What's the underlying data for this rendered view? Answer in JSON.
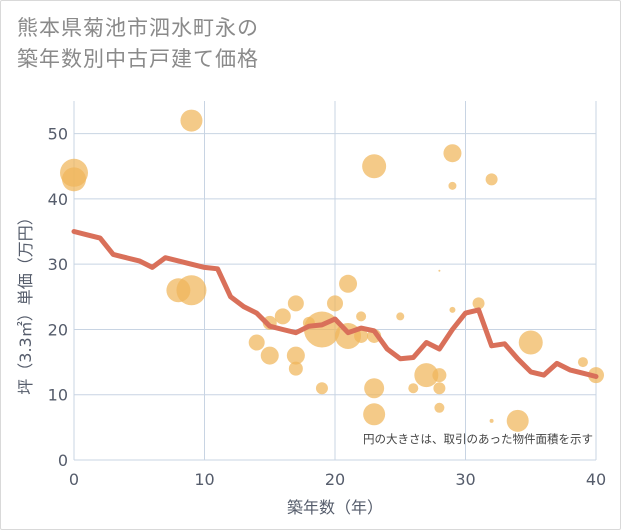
{
  "title_lines": [
    "熊本県菊池市泗水町永の",
    "築年数別中古戸建て価格"
  ],
  "colors": {
    "bubble": "#f0b55a",
    "line": "#d9705a",
    "grid": "#c8d4e3",
    "plot_bg": "#ffffff"
  },
  "chart_data": {
    "type": "scatter",
    "title": "熊本県菊池市泗水町永の築年数別中古戸建て価格",
    "xlabel": "築年数（年）",
    "ylabel": "坪（3.3㎡）単価（万円）",
    "xlim": [
      0,
      40
    ],
    "ylim": [
      0,
      55
    ],
    "xticks": [
      "0",
      "10",
      "20",
      "30",
      "40"
    ],
    "yticks": [
      "0",
      "10",
      "20",
      "30",
      "40",
      "50"
    ],
    "note": "円の大きさは、取引のあった物件面積を示す",
    "bubbles": [
      {
        "x": 0,
        "y": 44,
        "s": 14
      },
      {
        "x": 0,
        "y": 43,
        "s": 12
      },
      {
        "x": 9,
        "y": 52,
        "s": 11
      },
      {
        "x": 8,
        "y": 26,
        "s": 12
      },
      {
        "x": 9,
        "y": 26,
        "s": 15
      },
      {
        "x": 14,
        "y": 18,
        "s": 8
      },
      {
        "x": 15,
        "y": 16,
        "s": 9
      },
      {
        "x": 15,
        "y": 21,
        "s": 7
      },
      {
        "x": 16,
        "y": 22,
        "s": 8
      },
      {
        "x": 17,
        "y": 24,
        "s": 8
      },
      {
        "x": 17,
        "y": 16,
        "s": 9
      },
      {
        "x": 17,
        "y": 14,
        "s": 7
      },
      {
        "x": 18,
        "y": 21,
        "s": 6
      },
      {
        "x": 19,
        "y": 20,
        "s": 18
      },
      {
        "x": 19,
        "y": 11,
        "s": 6
      },
      {
        "x": 20,
        "y": 24,
        "s": 8
      },
      {
        "x": 21,
        "y": 27,
        "s": 9
      },
      {
        "x": 21,
        "y": 19,
        "s": 13
      },
      {
        "x": 22,
        "y": 22,
        "s": 5
      },
      {
        "x": 22,
        "y": 19,
        "s": 7
      },
      {
        "x": 23,
        "y": 45,
        "s": 12
      },
      {
        "x": 23,
        "y": 19,
        "s": 7
      },
      {
        "x": 23,
        "y": 11,
        "s": 10
      },
      {
        "x": 23,
        "y": 7,
        "s": 11
      },
      {
        "x": 25,
        "y": 22,
        "s": 4
      },
      {
        "x": 26,
        "y": 11,
        "s": 5
      },
      {
        "x": 27,
        "y": 13,
        "s": 12
      },
      {
        "x": 28,
        "y": 13,
        "s": 7
      },
      {
        "x": 28,
        "y": 11,
        "s": 6
      },
      {
        "x": 28,
        "y": 8,
        "s": 5
      },
      {
        "x": 28,
        "y": 29,
        "s": 1
      },
      {
        "x": 29,
        "y": 47,
        "s": 9
      },
      {
        "x": 29,
        "y": 42,
        "s": 4
      },
      {
        "x": 29,
        "y": 23,
        "s": 3
      },
      {
        "x": 31,
        "y": 24,
        "s": 6
      },
      {
        "x": 32,
        "y": 43,
        "s": 6
      },
      {
        "x": 32,
        "y": 6,
        "s": 2
      },
      {
        "x": 34,
        "y": 6,
        "s": 11
      },
      {
        "x": 35,
        "y": 18,
        "s": 12
      },
      {
        "x": 39,
        "y": 15,
        "s": 5
      },
      {
        "x": 40,
        "y": 13,
        "s": 8
      }
    ],
    "trend": {
      "x": [
        0,
        1,
        2,
        3,
        4,
        5,
        6,
        7,
        8,
        9,
        10,
        11,
        12,
        13,
        14,
        15,
        16,
        17,
        18,
        19,
        20,
        21,
        22,
        23,
        24,
        25,
        26,
        27,
        28,
        29,
        30,
        31,
        32,
        33,
        34,
        35,
        36,
        37,
        38,
        39,
        40
      ],
      "y": [
        35,
        34.5,
        34,
        31.5,
        31,
        30.5,
        29.5,
        31,
        30.5,
        30,
        29.5,
        29.3,
        25,
        23.5,
        22.5,
        20.5,
        20,
        19.5,
        20.5,
        20.7,
        21.6,
        19.5,
        20.2,
        19.8,
        17,
        15.5,
        15.7,
        18,
        17,
        20,
        22.5,
        23,
        17.5,
        17.8,
        15.5,
        13.5,
        13,
        14.8,
        13.8,
        13.3,
        12.8
      ]
    }
  }
}
